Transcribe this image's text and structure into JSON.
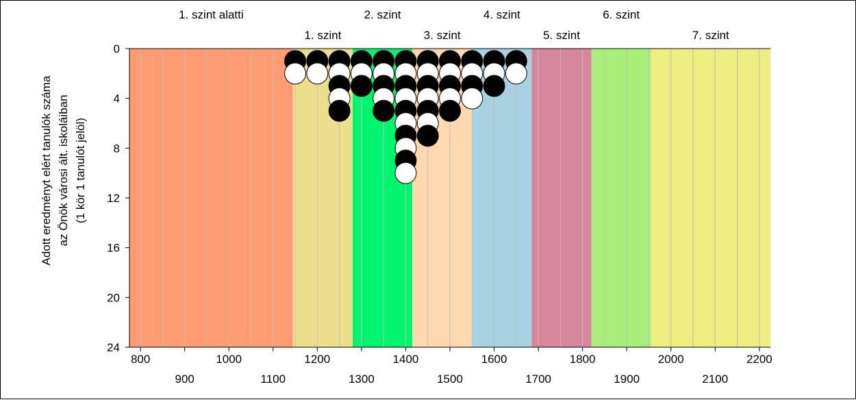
{
  "chart_data": {
    "type": "dot-histogram",
    "level_labels_top": [
      "1. szint alatti",
      "2. szint",
      "4. szint",
      "6. szint"
    ],
    "level_labels_bottom": [
      "1. szint",
      "3. szint",
      "5. szint",
      "7. szint"
    ],
    "ylabel_lines": [
      "Adott eredményt elért tanulók száma",
      "az Önök városi ált. iskoláiban",
      "(1 kör 1 tanulót jelöl)"
    ],
    "y_ticks": [
      0,
      4,
      8,
      12,
      16,
      20,
      24
    ],
    "x_ticks_row1": [
      800,
      1000,
      1200,
      1400,
      1600,
      1800,
      2000,
      2200
    ],
    "x_ticks_row2": [
      900,
      1100,
      1300,
      1500,
      1700,
      1900,
      2100
    ],
    "xlim": [
      775,
      2225
    ],
    "ylim": [
      0,
      24
    ],
    "y_inverted": true,
    "bands": [
      {
        "name": "1. szint alatti",
        "from": 775,
        "to": 1145,
        "color": "#FF9C73"
      },
      {
        "name": "1. szint",
        "from": 1145,
        "to": 1280,
        "color": "#EBDF8C"
      },
      {
        "name": "2. szint",
        "from": 1280,
        "to": 1415,
        "color": "#00F56E"
      },
      {
        "name": "3. szint",
        "from": 1415,
        "to": 1550,
        "color": "#FFD8B0"
      },
      {
        "name": "4. szint",
        "from": 1550,
        "to": 1685,
        "color": "#A8D2E0"
      },
      {
        "name": "5. szint",
        "from": 1685,
        "to": 1820,
        "color": "#D8869C"
      },
      {
        "name": "6. szint",
        "from": 1820,
        "to": 1955,
        "color": "#A9EE78"
      },
      {
        "name": "7. szint",
        "from": 1955,
        "to": 2225,
        "color": "#EEEE80"
      }
    ],
    "columns": [
      {
        "x": 1150,
        "marks": [
          "black",
          "white"
        ]
      },
      {
        "x": 1200,
        "marks": [
          "black",
          "white"
        ]
      },
      {
        "x": 1250,
        "marks": [
          "black",
          "white",
          "black",
          "white",
          "black"
        ]
      },
      {
        "x": 1300,
        "marks": [
          "black",
          "white",
          "black"
        ]
      },
      {
        "x": 1350,
        "marks": [
          "black",
          "white",
          "black",
          "white",
          "black"
        ]
      },
      {
        "x": 1400,
        "marks": [
          "black",
          "white",
          "black",
          "white",
          "black",
          "white",
          "black",
          "white",
          "black",
          "white"
        ]
      },
      {
        "x": 1450,
        "marks": [
          "black",
          "white",
          "black",
          "white",
          "black",
          "white",
          "black"
        ]
      },
      {
        "x": 1500,
        "marks": [
          "black",
          "white",
          "black",
          "white",
          "black"
        ]
      },
      {
        "x": 1550,
        "marks": [
          "black",
          "white",
          "black",
          "white"
        ]
      },
      {
        "x": 1600,
        "marks": [
          "black",
          "white",
          "black"
        ]
      },
      {
        "x": 1650,
        "marks": [
          "black",
          "white"
        ]
      }
    ],
    "grid_step": 50,
    "grid_line_color": "#BEBEBE"
  }
}
